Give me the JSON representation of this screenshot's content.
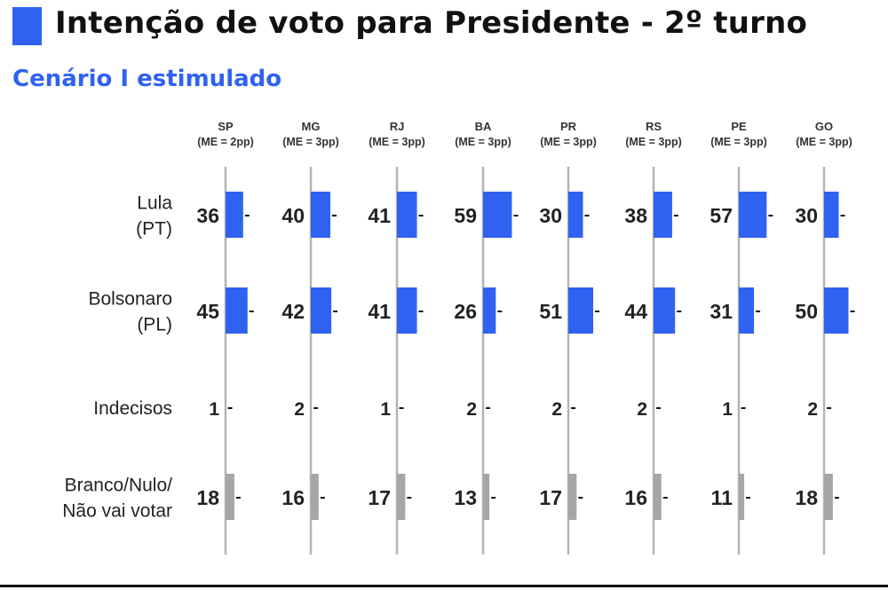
{
  "header": {
    "title": "Intenção de voto para Presidente - 2º turno",
    "subtitle": "Cenário I estimulado"
  },
  "colors": {
    "accent": "#2f62f0",
    "bar_candidate": "#2f62f0",
    "bar_other": "#a6a6a6",
    "baseline": "#b3b3b3",
    "text": "#222222"
  },
  "chart_data": {
    "type": "bar",
    "title": "Intenção de voto para Presidente - 2º turno",
    "subtitle": "Cenário I estimulado",
    "unit": "%",
    "columns": [
      {
        "state": "SP",
        "margin": "(ME = 2pp)"
      },
      {
        "state": "MG",
        "margin": "(ME = 3pp)"
      },
      {
        "state": "RJ",
        "margin": "(ME = 3pp)"
      },
      {
        "state": "BA",
        "margin": "(ME = 3pp)"
      },
      {
        "state": "PR",
        "margin": "(ME = 3pp)"
      },
      {
        "state": "RS",
        "margin": "(ME = 3pp)"
      },
      {
        "state": "PE",
        "margin": "(ME = 3pp)"
      },
      {
        "state": "GO",
        "margin": "(ME = 3pp)"
      }
    ],
    "margins_pp": [
      2,
      3,
      3,
      3,
      3,
      3,
      3,
      3
    ],
    "series": [
      {
        "label": [
          "Lula",
          "(PT)"
        ],
        "color": "blue",
        "values": [
          36,
          40,
          41,
          59,
          30,
          38,
          57,
          30
        ]
      },
      {
        "label": [
          "Bolsonaro",
          "(PL)"
        ],
        "color": "blue",
        "values": [
          45,
          42,
          41,
          26,
          51,
          44,
          31,
          50
        ]
      },
      {
        "label": [
          "Indecisos"
        ],
        "color": "gray",
        "values": [
          1,
          2,
          1,
          2,
          2,
          2,
          1,
          2
        ]
      },
      {
        "label": [
          "Branco/Nulo/",
          "Não vai votar"
        ],
        "color": "gray",
        "values": [
          18,
          16,
          17,
          13,
          17,
          16,
          11,
          18
        ]
      }
    ]
  }
}
